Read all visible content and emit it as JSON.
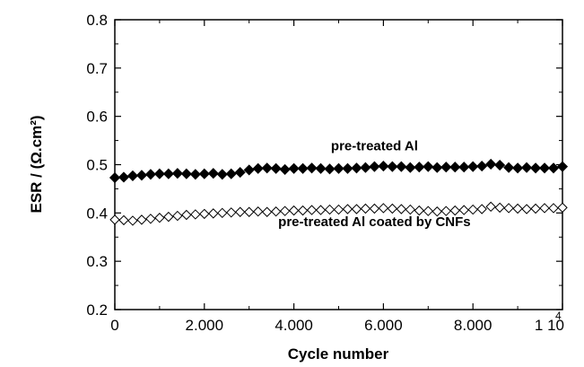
{
  "chart_data": {
    "type": "scatter",
    "xlabel": "Cycle number",
    "ylabel": "ESR / (Ω.cm²)",
    "xlim": [
      0,
      10000
    ],
    "ylim": [
      0.2,
      0.8
    ],
    "x_ticks": [
      0,
      2000,
      4000,
      6000,
      8000,
      10000
    ],
    "x_tick_labels": [
      "0",
      "2.000",
      "4.000",
      "6.000",
      "8.000",
      "1 10"
    ],
    "x_tick_exponent": "4",
    "y_ticks": [
      0.2,
      0.3,
      0.4,
      0.5,
      0.6,
      0.7,
      0.8
    ],
    "y_tick_labels": [
      "0.2",
      "0.3",
      "0.4",
      "0.5",
      "0.6",
      "0.7",
      "0.8"
    ],
    "grid": false,
    "legend": "none",
    "annotations": [
      {
        "text": "pre-treated Al",
        "x": 5800,
        "y": 0.53
      },
      {
        "text": "pre-treated Al coated by CNFs",
        "x": 5800,
        "y": 0.373
      }
    ],
    "series": [
      {
        "marker": "filled-diamond",
        "color": "#000000",
        "x": [
          0,
          200,
          400,
          600,
          800,
          1000,
          1200,
          1400,
          1600,
          1800,
          2000,
          2200,
          2400,
          2600,
          2800,
          3000,
          3200,
          3400,
          3600,
          3800,
          4000,
          4200,
          4400,
          4600,
          4800,
          5000,
          5200,
          5400,
          5600,
          5800,
          6000,
          6200,
          6400,
          6600,
          6800,
          7000,
          7200,
          7400,
          7600,
          7800,
          8000,
          8200,
          8400,
          8600,
          8800,
          9000,
          9200,
          9400,
          9600,
          9800,
          10000
        ],
        "values": [
          0.473,
          0.474,
          0.477,
          0.478,
          0.48,
          0.481,
          0.481,
          0.482,
          0.481,
          0.48,
          0.481,
          0.482,
          0.48,
          0.481,
          0.484,
          0.489,
          0.492,
          0.493,
          0.492,
          0.49,
          0.492,
          0.492,
          0.493,
          0.492,
          0.491,
          0.492,
          0.492,
          0.493,
          0.494,
          0.496,
          0.497,
          0.496,
          0.496,
          0.494,
          0.495,
          0.496,
          0.494,
          0.495,
          0.495,
          0.495,
          0.496,
          0.497,
          0.501,
          0.499,
          0.494,
          0.493,
          0.494,
          0.493,
          0.493,
          0.493,
          0.496
        ]
      },
      {
        "marker": "open-diamond",
        "color": "#000000",
        "x": [
          0,
          200,
          400,
          600,
          800,
          1000,
          1200,
          1400,
          1600,
          1800,
          2000,
          2200,
          2400,
          2600,
          2800,
          3000,
          3200,
          3400,
          3600,
          3800,
          4000,
          4200,
          4400,
          4600,
          4800,
          5000,
          5200,
          5400,
          5600,
          5800,
          6000,
          6200,
          6400,
          6600,
          6800,
          7000,
          7200,
          7400,
          7600,
          7800,
          8000,
          8200,
          8400,
          8600,
          8800,
          9000,
          9200,
          9400,
          9600,
          9800,
          10000
        ],
        "values": [
          0.386,
          0.385,
          0.384,
          0.386,
          0.388,
          0.39,
          0.392,
          0.394,
          0.396,
          0.397,
          0.398,
          0.399,
          0.4,
          0.401,
          0.402,
          0.402,
          0.403,
          0.402,
          0.403,
          0.404,
          0.405,
          0.405,
          0.406,
          0.406,
          0.407,
          0.407,
          0.408,
          0.408,
          0.409,
          0.409,
          0.41,
          0.409,
          0.408,
          0.407,
          0.405,
          0.404,
          0.403,
          0.404,
          0.405,
          0.406,
          0.407,
          0.408,
          0.413,
          0.411,
          0.41,
          0.409,
          0.408,
          0.409,
          0.41,
          0.41,
          0.411
        ]
      }
    ]
  }
}
